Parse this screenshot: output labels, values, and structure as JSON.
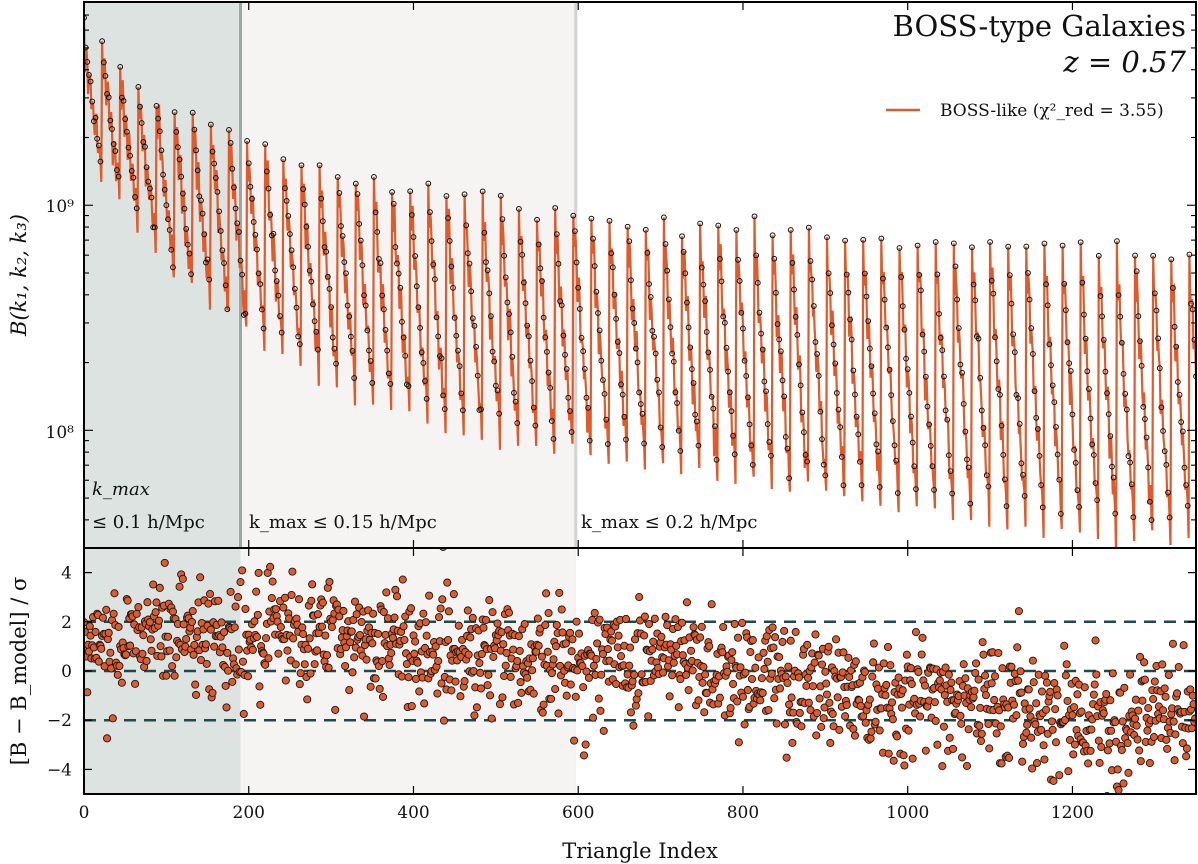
{
  "chart_data": [
    {
      "type": "line",
      "panel": "top",
      "title": "BOSS-type Galaxies",
      "subtitle": "z = 0.57",
      "ylabel": "B(k₁, k₂, k₃)",
      "yscale": "log",
      "xlim": [
        0,
        1350
      ],
      "ylim": [
        30000000,
        8000000000
      ],
      "yticks": [
        {
          "label": "10⁹",
          "value": 1000000000
        },
        {
          "label": "10⁸",
          "value": 100000000
        }
      ],
      "legend": {
        "placement": "top-right",
        "entries": [
          {
            "label": "BOSS-like (χ²_red = 3.55)",
            "color": "#e05a2b"
          }
        ]
      },
      "regions": [
        {
          "label_line1": "k_max",
          "label_line2": "≤ 0.1 h/Mpc",
          "x_start": 0,
          "x_end": 190,
          "color": "#dde3e1"
        },
        {
          "label_line1": "k_max ≤ 0.15 h/Mpc",
          "x_start": 190,
          "x_end": 597,
          "color": "#f5f4f2"
        },
        {
          "label_line1": "k_max ≤ 0.2 h/Mpc",
          "x_start": 597,
          "x_end": 1350,
          "color": "#ffffff"
        }
      ],
      "series": [
        {
          "name": "BOSS-like (χ²_red = 3.55)",
          "color": "#e05a2b",
          "points_per_sawtooth": 22,
          "sawtooth_starts": [
            0,
            22,
            44,
            66,
            88,
            110,
            132,
            154,
            176,
            198,
            220,
            242,
            264,
            286,
            308,
            330,
            352,
            374,
            396,
            418,
            440,
            462,
            484,
            506,
            528,
            550,
            572,
            594,
            616,
            638,
            660,
            682,
            704,
            726,
            748,
            770,
            792,
            814,
            836,
            858,
            880,
            902,
            924,
            946,
            968,
            990,
            1012,
            1034,
            1056,
            1078,
            1100,
            1122,
            1144,
            1166,
            1188,
            1210,
            1232,
            1254,
            1276,
            1298,
            1320,
            1342
          ],
          "sawtooth_peak": [
            5800000000,
            5200000000,
            4000000000,
            3500000000,
            3000000000,
            2700000000,
            2500000000,
            2300000000,
            2200000000,
            1900000000,
            1800000000,
            1650000000,
            1550000000,
            1450000000,
            1400000000,
            1350000000,
            1300000000,
            1250000000,
            1200000000,
            1150000000,
            1100000000,
            1080000000,
            1050000000,
            1000000000,
            980000000,
            950000000,
            920000000,
            900000000,
            880000000,
            860000000,
            840000000,
            820000000,
            810000000,
            800000000,
            790000000,
            780000000,
            770000000,
            760000000,
            750000000,
            740000000,
            730000000,
            720000000,
            710000000,
            700000000,
            690000000,
            685000000,
            680000000,
            675000000,
            670000000,
            665000000,
            660000000,
            655000000,
            650000000,
            645000000,
            640000000,
            630000000,
            620000000,
            610000000,
            600000000,
            590000000,
            580000000,
            570000000
          ],
          "sawtooth_trough": [
            1500000000,
            1200000000,
            900000000,
            700000000,
            550000000,
            480000000,
            420000000,
            370000000,
            320000000,
            280000000,
            250000000,
            220000000,
            200000000,
            180000000,
            160000000,
            150000000,
            140000000,
            130000000,
            120000000,
            115000000,
            110000000,
            105000000,
            100000000,
            98000000,
            95000000,
            92000000,
            90000000,
            88000000,
            85000000,
            82000000,
            80000000,
            77000000,
            75000000,
            72000000,
            70000000,
            68000000,
            66000000,
            64000000,
            62000000,
            60000000,
            58000000,
            56000000,
            54000000,
            52000000,
            50000000,
            49000000,
            48000000,
            47000000,
            46000000,
            45000000,
            44000000,
            43000000,
            42000000,
            41000000,
            40000000,
            40000000,
            39000000,
            38000000,
            38000000,
            37000000,
            37000000,
            36000000
          ]
        }
      ]
    },
    {
      "type": "scatter",
      "panel": "bottom",
      "xlabel": "Triangle Index",
      "ylabel": "[B − B_model] / σ",
      "xlim": [
        0,
        1350
      ],
      "ylim": [
        -5,
        5
      ],
      "xticks": [
        0,
        200,
        400,
        600,
        800,
        1000,
        1200
      ],
      "yticks": [
        4,
        2,
        0,
        -2,
        -4
      ],
      "reference_lines": [
        2,
        0,
        -2
      ],
      "reference_line_color": "#1f4a4a",
      "point_color": "#e05a2b",
      "n_points": 1350,
      "mean_trend": [
        {
          "x": 0,
          "y": 0.5
        },
        {
          "x": 100,
          "y": 1.8
        },
        {
          "x": 190,
          "y": 1.2
        },
        {
          "x": 300,
          "y": 1.5
        },
        {
          "x": 400,
          "y": 1.0
        },
        {
          "x": 500,
          "y": 0.8
        },
        {
          "x": 600,
          "y": 0.3
        },
        {
          "x": 700,
          "y": 0.6
        },
        {
          "x": 800,
          "y": 0.0
        },
        {
          "x": 900,
          "y": -0.6
        },
        {
          "x": 1000,
          "y": -1.0
        },
        {
          "x": 1100,
          "y": -1.2
        },
        {
          "x": 1200,
          "y": -1.8
        },
        {
          "x": 1300,
          "y": -2.0
        },
        {
          "x": 1350,
          "y": -1.5
        }
      ],
      "scatter_sigma": 1.2
    }
  ]
}
